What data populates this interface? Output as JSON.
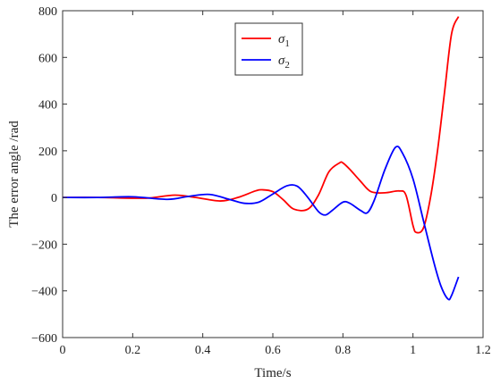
{
  "chart_data": {
    "type": "line",
    "xlabel": "Time/s",
    "ylabel": "The error angle /rad",
    "xlim": [
      0,
      1.2
    ],
    "ylim": [
      -600,
      800
    ],
    "xticks": [
      0,
      0.2,
      0.4,
      0.6,
      0.8,
      1,
      1.2
    ],
    "xtick_labels": [
      "0",
      "0.2",
      "0.4",
      "0.6",
      "0.8",
      "1",
      "1.2"
    ],
    "yticks": [
      -600,
      -400,
      -200,
      0,
      200,
      400,
      600,
      800
    ],
    "ytick_labels": [
      "−600",
      "−400",
      "−200",
      "0",
      "200",
      "400",
      "600",
      "800"
    ],
    "grid": false,
    "legend_position": "top-center",
    "series": [
      {
        "name": "σ",
        "subscript": "1",
        "color": "#ff0000",
        "x": [
          0,
          0.1,
          0.2,
          0.25,
          0.32,
          0.38,
          0.45,
          0.5,
          0.55,
          0.57,
          0.6,
          0.63,
          0.66,
          0.7,
          0.73,
          0.76,
          0.79,
          0.8,
          0.82,
          0.85,
          0.88,
          0.92,
          0.96,
          0.98,
          1.0,
          1.01,
          1.03,
          1.05,
          1.07,
          1.09,
          1.11,
          1.13
        ],
        "y": [
          0,
          0,
          -3,
          -2,
          10,
          0,
          -15,
          0,
          28,
          33,
          25,
          -10,
          -50,
          -50,
          10,
          110,
          148,
          148,
          120,
          70,
          25,
          20,
          28,
          10,
          -120,
          -150,
          -130,
          0,
          200,
          450,
          700,
          775
        ]
      },
      {
        "name": "σ",
        "subscript": "2",
        "color": "#0000ff",
        "x": [
          0,
          0.1,
          0.2,
          0.3,
          0.36,
          0.42,
          0.48,
          0.52,
          0.56,
          0.6,
          0.64,
          0.67,
          0.7,
          0.73,
          0.75,
          0.77,
          0.8,
          0.82,
          0.85,
          0.87,
          0.89,
          0.92,
          0.95,
          0.97,
          1.0,
          1.03,
          1.06,
          1.08,
          1.1,
          1.11,
          1.13
        ],
        "y": [
          0,
          0,
          3,
          -8,
          5,
          13,
          -10,
          -25,
          -20,
          15,
          50,
          48,
          0,
          -60,
          -75,
          -55,
          -20,
          -25,
          -55,
          -65,
          -10,
          120,
          215,
          190,
          80,
          -100,
          -280,
          -380,
          -435,
          -420,
          -340
        ]
      }
    ]
  }
}
